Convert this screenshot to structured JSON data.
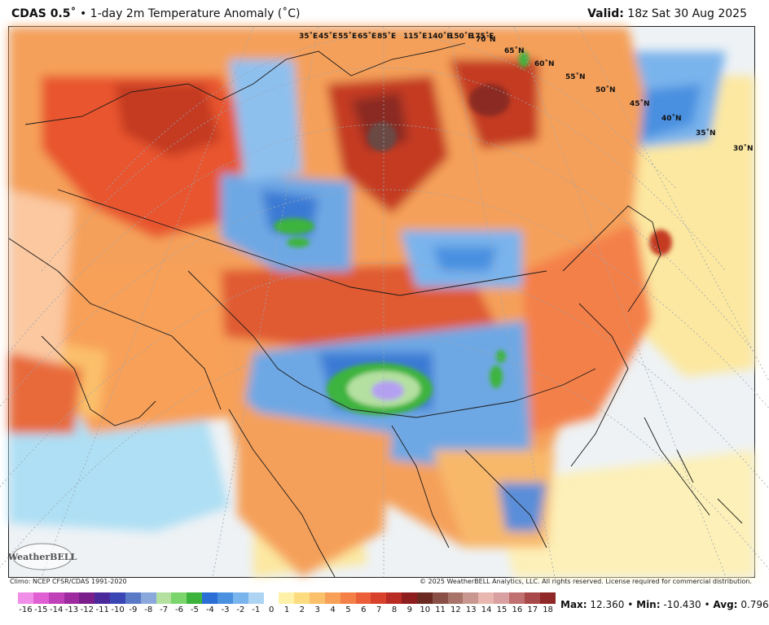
{
  "header": {
    "title_bold": "CDAS 0.5˚",
    "title_rest": " • 1-day 2m Temperature Anomaly (˚C)",
    "valid_bold": "Valid:",
    "valid_rest": " 18z Sat 30 Aug 2025"
  },
  "footer": {
    "climo": "Climo: NCEP CFSR/CDAS 1991-2020",
    "copyright": "© 2025 WeatherBELL Analytics, LLC. All rights reserved. License required for commercial distribution.",
    "logo_text": "WeatherBELL"
  },
  "stats": {
    "max_label": "Max:",
    "max_value": "12.360",
    "min_label": "Min:",
    "min_value": "-10.430",
    "avg_label": "Avg:",
    "avg_value": "0.796"
  },
  "colorbar": {
    "labels": [
      "-16",
      "-15",
      "-14",
      "-13",
      "-12",
      "-11",
      "-10",
      "-9",
      "-8",
      "-7",
      "-6",
      "-5",
      "-4",
      "-3",
      "-2",
      "-1",
      "0",
      "1",
      "2",
      "3",
      "4",
      "5",
      "6",
      "7",
      "8",
      "9",
      "10",
      "11",
      "12",
      "13",
      "14",
      "15",
      "16",
      "17",
      "18"
    ],
    "colors": [
      "#f08ee8",
      "#e060d4",
      "#c040b8",
      "#9e2aa0",
      "#7a1e8c",
      "#4a2a9a",
      "#3a46b4",
      "#5a7ac8",
      "#8aa8dc",
      "#b4e0a0",
      "#7cd46c",
      "#3cb43c",
      "#2a6ed6",
      "#4a90e0",
      "#7ab4ec",
      "#aed4f4",
      "#ffffff",
      "#fff2a8",
      "#fddc80",
      "#fbc06a",
      "#f8a058",
      "#f48048",
      "#ea5e38",
      "#d8422c",
      "#b82c24",
      "#8e1e1e",
      "#6a2a22",
      "#8a5048",
      "#a8746a",
      "#c89890",
      "#e8b8b0",
      "#d8a0a0",
      "#c07070",
      "#a84848",
      "#902828"
    ]
  },
  "map_labels": {
    "meridians": [
      "35˚E",
      "45˚E",
      "55˚E",
      "65˚E",
      "85˚E",
      "115˚E",
      "140˚E",
      "150˚E",
      "175˚E"
    ],
    "parallels": [
      "70˚N",
      "65˚N",
      "60˚N",
      "55˚N",
      "50˚N",
      "45˚N",
      "40˚N",
      "35˚N",
      "30˚N"
    ]
  }
}
